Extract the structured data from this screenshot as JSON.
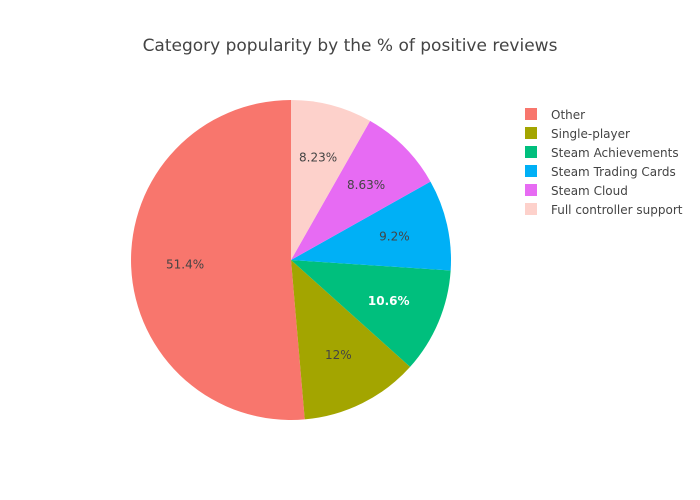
{
  "chart_data": {
    "type": "pie",
    "title": "Category popularity by the % of positive reviews",
    "categories": [
      "Other",
      "Single-player",
      "Steam Achievements",
      "Steam Trading Cards",
      "Steam Cloud",
      "Full controller support"
    ],
    "values": [
      51.4,
      12,
      10.6,
      9.2,
      8.63,
      8.23
    ],
    "labels": [
      "51.4%",
      "12%",
      "10.6%",
      "9.2%",
      "8.63%",
      "8.23%"
    ],
    "colors": [
      "#F8766D",
      "#A3A500",
      "#00BF7D",
      "#00B0F6",
      "#E76BF3",
      "#FDD1CB"
    ],
    "label_colors": [
      "#444444",
      "#444444",
      "#ffffff",
      "#444444",
      "#444444",
      "#444444"
    ],
    "direction": "counterclockwise",
    "start_angle": "top",
    "legend_position": "top-right"
  }
}
